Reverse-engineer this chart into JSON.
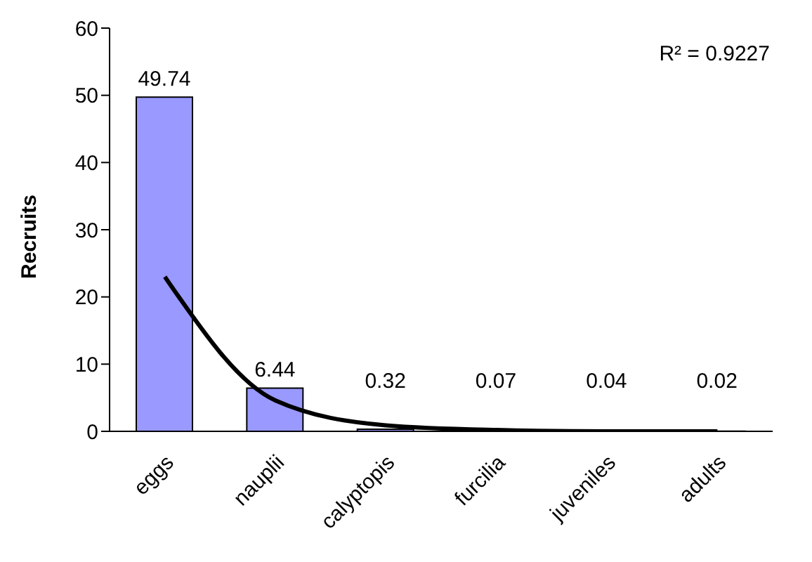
{
  "chart_data": {
    "type": "bar",
    "ylabel": "Recruits",
    "categories": [
      "eggs",
      "nauplii",
      "calyptopis",
      "furcilia",
      "juveniles",
      "adults"
    ],
    "series": [
      {
        "color": "#9999ff",
        "values": [
          49.74,
          6.44,
          0.32,
          0.07,
          0.04,
          0.02
        ],
        "value_labels": [
          "49.74",
          "6.44",
          "0.32",
          "0.07",
          "0.04",
          "0.02"
        ]
      },
      {
        "type": "line",
        "color": "#000000",
        "values": [
          23,
          4.6,
          0.9,
          0.2,
          0,
          0
        ]
      }
    ],
    "ylim": [
      0,
      60
    ],
    "yticks": [
      0,
      10,
      20,
      30,
      40,
      50,
      60
    ],
    "marker": "none",
    "line_style": "solid",
    "annotations": [
      "R² = 0.9227"
    ]
  }
}
